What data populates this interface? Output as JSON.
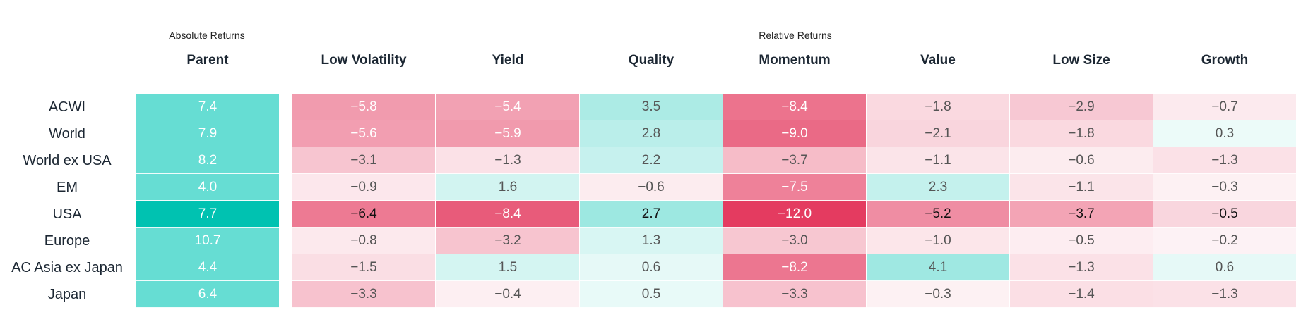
{
  "chart_data": {
    "type": "heatmap",
    "group_labels": {
      "absolute": "Absolute Returns",
      "relative": "Relative Returns"
    },
    "columns": [
      "Parent",
      "Low Volatility",
      "Yield",
      "Quality",
      "Momentum",
      "Value",
      "Low Size",
      "Growth"
    ],
    "rows": [
      "ACWI",
      "World",
      "World ex USA",
      "EM",
      "USA",
      "Europe",
      "AC Asia ex Japan",
      "Japan"
    ],
    "values": [
      [
        "7.4",
        "−5.8",
        "−5.4",
        "3.5",
        "−8.4",
        "−1.8",
        "−2.9",
        "−0.7"
      ],
      [
        "7.9",
        "−5.6",
        "−5.9",
        "2.8",
        "−9.0",
        "−2.1",
        "−1.8",
        "0.3"
      ],
      [
        "8.2",
        "−3.1",
        "−1.3",
        "2.2",
        "−3.7",
        "−1.1",
        "−0.6",
        "−1.3"
      ],
      [
        "4.0",
        "−0.9",
        "1.6",
        "−0.6",
        "−7.5",
        "2.3",
        "−1.1",
        "−0.3"
      ],
      [
        "7.7",
        "−6.4",
        "−8.4",
        "2.7",
        "−12.0",
        "−5.2",
        "−3.7",
        "−0.5"
      ],
      [
        "10.7",
        "−0.8",
        "−3.2",
        "1.3",
        "−3.0",
        "−1.0",
        "−0.5",
        "−0.2"
      ],
      [
        "4.4",
        "−1.5",
        "1.5",
        "0.6",
        "−8.2",
        "4.1",
        "−1.3",
        "0.6"
      ],
      [
        "6.4",
        "−3.3",
        "−0.4",
        "0.5",
        "−3.3",
        "−0.3",
        "−1.4",
        "−1.3"
      ]
    ],
    "highlighted_row": "USA",
    "colors": {
      "parent": "#66ddd3",
      "parent_highlight": "#00c2b1",
      "positive": "#00c2b1",
      "negative": "#e43b60",
      "light_text": "#ffffff",
      "dark_text": "#555555",
      "highlight_text": "#111111"
    }
  }
}
